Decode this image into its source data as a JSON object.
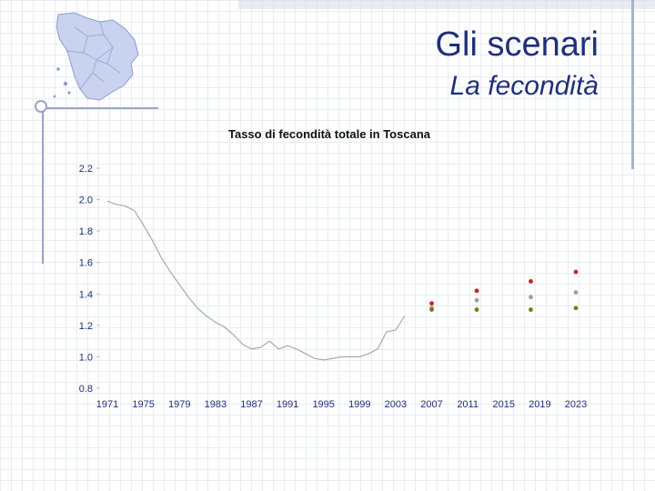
{
  "header": {
    "title": "Gli scenari",
    "subtitle": "La fecondità"
  },
  "chart_data": {
    "type": "line",
    "title": "Tasso di fecondità totale in Toscana",
    "xlabel": "",
    "ylabel": "",
    "xlim": [
      1971,
      2023
    ],
    "ylim": [
      0.8,
      2.2
    ],
    "x_ticks": [
      "1971",
      "1975",
      "1979",
      "1983",
      "1987",
      "1991",
      "1995",
      "1999",
      "2003",
      "2007",
      "2011",
      "2015",
      "2019",
      "2023"
    ],
    "y_ticks": [
      "2.2",
      "2.0",
      "1.8",
      "1.6",
      "1.4",
      "1.2",
      "1.0",
      "0.8"
    ],
    "grid": false,
    "legend": "none",
    "series": [
      {
        "color": "#9a9a9a",
        "style": "line",
        "points": [
          [
            1971,
            1.99
          ],
          [
            1972,
            1.97
          ],
          [
            1973,
            1.96
          ],
          [
            1974,
            1.93
          ],
          [
            1975,
            1.84
          ],
          [
            1976,
            1.74
          ],
          [
            1977,
            1.63
          ],
          [
            1978,
            1.54
          ],
          [
            1979,
            1.46
          ],
          [
            1980,
            1.38
          ],
          [
            1981,
            1.31
          ],
          [
            1982,
            1.26
          ],
          [
            1983,
            1.22
          ],
          [
            1984,
            1.19
          ],
          [
            1985,
            1.14
          ],
          [
            1986,
            1.08
          ],
          [
            1987,
            1.05
          ],
          [
            1988,
            1.06
          ],
          [
            1989,
            1.1
          ],
          [
            1990,
            1.05
          ],
          [
            1991,
            1.07
          ],
          [
            1992,
            1.05
          ],
          [
            1993,
            1.02
          ],
          [
            1994,
            0.99
          ],
          [
            1995,
            0.98
          ],
          [
            1996,
            0.99
          ],
          [
            1997,
            1.0
          ],
          [
            1998,
            1.0
          ],
          [
            1999,
            1.0
          ],
          [
            2000,
            1.02
          ],
          [
            2001,
            1.05
          ],
          [
            2002,
            1.16
          ],
          [
            2003,
            1.17
          ],
          [
            2004,
            1.26
          ]
        ]
      },
      {
        "color": "#d02020",
        "style": "marker",
        "points": [
          [
            2007,
            1.34
          ],
          [
            2012,
            1.42
          ],
          [
            2018,
            1.48
          ],
          [
            2023,
            1.54
          ]
        ]
      },
      {
        "color": "#a0a0a0",
        "style": "marker",
        "points": [
          [
            2007,
            1.31
          ],
          [
            2012,
            1.36
          ],
          [
            2018,
            1.38
          ],
          [
            2023,
            1.41
          ]
        ]
      },
      {
        "color": "#7a7a10",
        "style": "marker",
        "points": [
          [
            2007,
            1.3
          ],
          [
            2012,
            1.3
          ],
          [
            2018,
            1.3
          ],
          [
            2023,
            1.31
          ]
        ]
      }
    ],
    "colors": {
      "line": "#9a9a9a",
      "high": "#d02020",
      "central": "#a0a0a0",
      "low": "#7a7a10",
      "text": "#1f2f7a"
    }
  }
}
